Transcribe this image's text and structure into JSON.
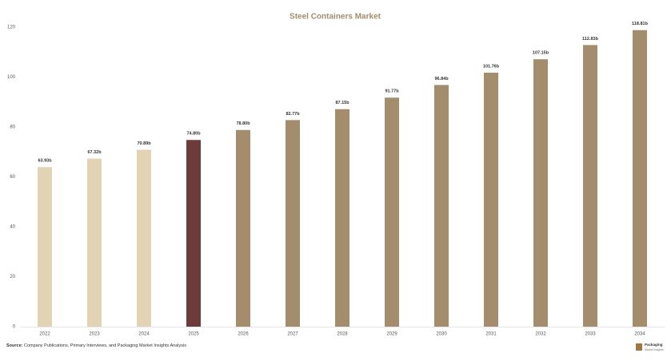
{
  "chart_data": {
    "type": "bar",
    "title": "Steel Containers Market",
    "categories": [
      "2022",
      "2023",
      "2024",
      "2025",
      "2026",
      "2027",
      "2028",
      "2029",
      "2030",
      "2031",
      "2032",
      "2033",
      "2034"
    ],
    "values": [
      63.93,
      67.32,
      70.89,
      74.8,
      78.8,
      82.77,
      87.15,
      91.77,
      96.84,
      101.76,
      107.15,
      112.83,
      118.81
    ],
    "value_labels": [
      "63.93b",
      "67.32b",
      "70.89b",
      "74.80b",
      "78.80b",
      "82.77b",
      "87.15b",
      "91.77b",
      "96.84b",
      "101.76b",
      "107.15b",
      "112.83b",
      "118.81b"
    ],
    "colors": [
      "#e2d3b5",
      "#e2d3b5",
      "#e2d3b5",
      "#6e3b3b",
      "#a38d6d",
      "#a38d6d",
      "#a38d6d",
      "#a38d6d",
      "#a38d6d",
      "#a38d6d",
      "#a38d6d",
      "#a38d6d",
      "#a38d6d"
    ],
    "ylim": [
      0,
      120
    ],
    "yticks": [
      0,
      20,
      40,
      60,
      80,
      100,
      120
    ],
    "grid": false
  },
  "footer": {
    "source_label": "Source:",
    "source_text": "Company Publications, Primary Interviews, and Packaging Market Insights Analysis",
    "logo_title": "Packaging",
    "logo_subtitle": "Market Insights"
  }
}
